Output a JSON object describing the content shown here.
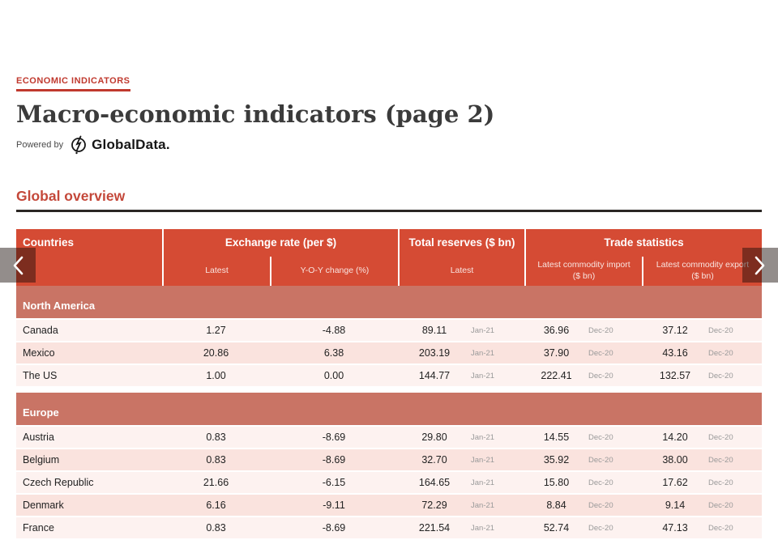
{
  "page": {
    "eyebrow": "ECONOMIC INDICATORS",
    "title": "Macro-economic indicators (page 2)",
    "powered_by": "Powered by",
    "brand": "GlobalData.",
    "section_title": "Global overview"
  },
  "colors": {
    "header_red": "#d54b34",
    "band_salmon": "#c97465",
    "row_light": "#fdf2f0",
    "row_dark": "#fae3de",
    "accent_red": "#c0392e",
    "heading_red": "#c4483a",
    "rule_dark": "#2b2724",
    "date_gray": "#9a9a9a"
  },
  "table": {
    "columns": {
      "countries": "Countries",
      "exchange_group": "Exchange rate (per $)",
      "exchange_latest": "Latest",
      "exchange_yoy": "Y-O-Y change (%)",
      "reserves_group": "Total reserves ($ bn)",
      "reserves_latest": "Latest",
      "trade_group": "Trade statistics",
      "trade_import": "Latest commodity import ($ bn)",
      "trade_export": "Latest commodity export ($ bn)"
    },
    "sections": [
      {
        "name": "North America",
        "rows": [
          {
            "country": "Canada",
            "exchange_latest": "1.27",
            "yoy_change": "-4.88",
            "reserves": "89.11",
            "reserves_date": "Jan-21",
            "import": "36.96",
            "import_date": "Dec-20",
            "export": "37.12",
            "export_date": "Dec-20"
          },
          {
            "country": "Mexico",
            "exchange_latest": "20.86",
            "yoy_change": "6.38",
            "reserves": "203.19",
            "reserves_date": "Jan-21",
            "import": "37.90",
            "import_date": "Dec-20",
            "export": "43.16",
            "export_date": "Dec-20"
          },
          {
            "country": "The US",
            "exchange_latest": "1.00",
            "yoy_change": "0.00",
            "reserves": "144.77",
            "reserves_date": "Jan-21",
            "import": "222.41",
            "import_date": "Dec-20",
            "export": "132.57",
            "export_date": "Dec-20"
          }
        ]
      },
      {
        "name": "Europe",
        "rows": [
          {
            "country": "Austria",
            "exchange_latest": "0.83",
            "yoy_change": "-8.69",
            "reserves": "29.80",
            "reserves_date": "Jan-21",
            "import": "14.55",
            "import_date": "Dec-20",
            "export": "14.20",
            "export_date": "Dec-20"
          },
          {
            "country": "Belgium",
            "exchange_latest": "0.83",
            "yoy_change": "-8.69",
            "reserves": "32.70",
            "reserves_date": "Jan-21",
            "import": "35.92",
            "import_date": "Dec-20",
            "export": "38.00",
            "export_date": "Dec-20"
          },
          {
            "country": "Czech Republic",
            "exchange_latest": "21.66",
            "yoy_change": "-6.15",
            "reserves": "164.65",
            "reserves_date": "Jan-21",
            "import": "15.80",
            "import_date": "Dec-20",
            "export": "17.62",
            "export_date": "Dec-20"
          },
          {
            "country": "Denmark",
            "exchange_latest": "6.16",
            "yoy_change": "-9.11",
            "reserves": "72.29",
            "reserves_date": "Jan-21",
            "import": "8.84",
            "import_date": "Dec-20",
            "export": "9.14",
            "export_date": "Dec-20"
          },
          {
            "country": "France",
            "exchange_latest": "0.83",
            "yoy_change": "-8.69",
            "reserves": "221.54",
            "reserves_date": "Jan-21",
            "import": "52.74",
            "import_date": "Dec-20",
            "export": "47.13",
            "export_date": "Dec-20"
          }
        ]
      }
    ]
  }
}
